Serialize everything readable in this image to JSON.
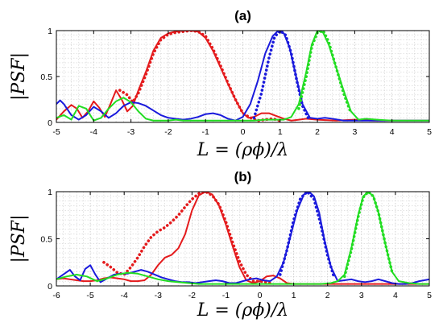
{
  "chart_data": [
    {
      "type": "line",
      "title": "(a)",
      "xlabel": "L = (ρϕ)/λ",
      "ylabel": "|PSF|",
      "xlim": [
        -5,
        5
      ],
      "ylim": [
        0,
        1
      ],
      "xticks": [
        -5,
        -4,
        -3,
        -2,
        -1,
        0,
        1,
        2,
        3,
        4,
        5
      ],
      "yticks": [
        0,
        0.5,
        1
      ],
      "ytick_labels": [
        "0",
        "0.5",
        "1"
      ],
      "grid": "minor dotted",
      "series": [
        {
          "color": "#e41a1c",
          "style": "solid",
          "x": [
            -5,
            -4.8,
            -4.6,
            -4.45,
            -4.3,
            -4.15,
            -4.0,
            -3.85,
            -3.7,
            -3.55,
            -3.4,
            -3.25,
            -3.1,
            -2.95,
            -2.8,
            -2.6,
            -2.4,
            -2.2,
            -2.0,
            -1.8,
            -1.6,
            -1.4,
            -1.2,
            -1.0,
            -0.8,
            -0.6,
            -0.4,
            -0.2,
            0.0,
            0.15,
            0.3,
            0.5,
            0.7,
            0.9,
            1.1,
            1.3,
            1.5,
            1.7,
            2.0,
            2.5,
            3.0,
            3.5,
            4.0,
            4.5,
            5.0
          ],
          "y": [
            0.03,
            0.12,
            0.19,
            0.15,
            0.05,
            0.12,
            0.23,
            0.16,
            0.06,
            0.2,
            0.35,
            0.25,
            0.12,
            0.18,
            0.35,
            0.55,
            0.78,
            0.92,
            0.97,
            0.99,
            1.0,
            1.0,
            0.99,
            0.92,
            0.78,
            0.6,
            0.42,
            0.25,
            0.1,
            0.05,
            0.06,
            0.1,
            0.1,
            0.07,
            0.04,
            0.02,
            0.03,
            0.04,
            0.03,
            0.02,
            0.03,
            0.02,
            0.02,
            0.02,
            0.02
          ]
        },
        {
          "color": "#e41a1c",
          "style": "dotted",
          "x": [
            -3.3,
            -3.1,
            -2.95,
            -2.8,
            -2.6,
            -2.4,
            -2.2,
            -2.0,
            -1.8,
            -1.6,
            -1.4,
            -1.2,
            -1.0,
            -0.8,
            -0.6,
            -0.4,
            -0.2,
            0.0,
            0.2,
            0.4,
            0.6,
            0.8,
            1.0
          ],
          "y": [
            0.35,
            0.3,
            0.22,
            0.32,
            0.52,
            0.75,
            0.9,
            0.96,
            0.98,
            0.99,
            1.0,
            0.99,
            0.94,
            0.8,
            0.62,
            0.43,
            0.25,
            0.1,
            0.05,
            0.02,
            0.03,
            0.04,
            0.02
          ]
        },
        {
          "color": "#1a1adc",
          "style": "solid",
          "x": [
            -5,
            -4.9,
            -4.8,
            -4.6,
            -4.4,
            -4.2,
            -4.0,
            -3.8,
            -3.6,
            -3.4,
            -3.2,
            -3.0,
            -2.8,
            -2.6,
            -2.4,
            -2.2,
            -2.0,
            -1.8,
            -1.6,
            -1.4,
            -1.2,
            -1.0,
            -0.8,
            -0.6,
            -0.4,
            -0.2,
            0.0,
            0.2,
            0.4,
            0.6,
            0.8,
            0.95,
            1.1,
            1.25,
            1.4,
            1.6,
            1.8,
            2.0,
            2.2,
            2.4,
            2.7,
            3.0,
            3.5,
            4.0,
            4.5,
            5.0
          ],
          "y": [
            0.2,
            0.24,
            0.2,
            0.08,
            0.03,
            0.08,
            0.17,
            0.12,
            0.05,
            0.1,
            0.18,
            0.22,
            0.21,
            0.18,
            0.13,
            0.08,
            0.05,
            0.04,
            0.03,
            0.04,
            0.06,
            0.09,
            0.1,
            0.08,
            0.04,
            0.02,
            0.06,
            0.2,
            0.45,
            0.75,
            0.94,
            1.0,
            0.97,
            0.82,
            0.55,
            0.2,
            0.05,
            0.04,
            0.05,
            0.04,
            0.02,
            0.02,
            0.02,
            0.02,
            0.02,
            0.02
          ]
        },
        {
          "color": "#1a1adc",
          "style": "dotted",
          "x": [
            0.3,
            0.5,
            0.7,
            0.85,
            1.0,
            1.15,
            1.3,
            1.45,
            1.6,
            1.75
          ],
          "y": [
            0.05,
            0.32,
            0.7,
            0.93,
            1.0,
            0.95,
            0.75,
            0.45,
            0.18,
            0.05
          ]
        },
        {
          "color": "#22dd22",
          "style": "solid",
          "x": [
            -5,
            -4.8,
            -4.6,
            -4.4,
            -4.2,
            -4.0,
            -3.8,
            -3.6,
            -3.4,
            -3.2,
            -3.0,
            -2.8,
            -2.6,
            -2.4,
            -2.2,
            -2.0,
            -1.8,
            -1.6,
            -1.4,
            -1.2,
            -1.0,
            -0.8,
            -0.6,
            -0.4,
            -0.2,
            0.0,
            0.3,
            0.6,
            0.9,
            1.1,
            1.3,
            1.5,
            1.7,
            1.85,
            2.0,
            2.15,
            2.3,
            2.5,
            2.7,
            2.9,
            3.1,
            3.3,
            3.6,
            4.0,
            4.5,
            5.0
          ],
          "y": [
            0.05,
            0.08,
            0.03,
            0.18,
            0.15,
            0.02,
            0.05,
            0.15,
            0.23,
            0.27,
            0.22,
            0.12,
            0.04,
            0.02,
            0.02,
            0.02,
            0.03,
            0.02,
            0.02,
            0.02,
            0.02,
            0.02,
            0.02,
            0.02,
            0.02,
            0.02,
            0.02,
            0.03,
            0.03,
            0.03,
            0.06,
            0.2,
            0.55,
            0.85,
            1.0,
            0.98,
            0.85,
            0.6,
            0.35,
            0.12,
            0.03,
            0.04,
            0.03,
            0.02,
            0.02,
            0.02
          ]
        },
        {
          "color": "#22dd22",
          "style": "dotted",
          "x": [
            1.5,
            1.7,
            1.85,
            2.0,
            2.15,
            2.3,
            2.5,
            2.7,
            2.9
          ],
          "y": [
            0.15,
            0.5,
            0.83,
            0.98,
            1.0,
            0.88,
            0.6,
            0.32,
            0.1
          ]
        }
      ]
    },
    {
      "type": "line",
      "title": "(b)",
      "xlabel": "L = (ρϕ)/λ",
      "ylabel": "|PSF|",
      "xlim": [
        -6,
        5
      ],
      "ylim": [
        0,
        1
      ],
      "xticks": [
        -6,
        -5,
        -4,
        -3,
        -2,
        -1,
        0,
        1,
        2,
        3,
        4,
        5
      ],
      "yticks": [
        0,
        0.5,
        1
      ],
      "ytick_labels": [
        "0",
        "0.5",
        "1"
      ],
      "grid": "minor dotted",
      "series": [
        {
          "color": "#e41a1c",
          "style": "solid",
          "x": [
            -6,
            -5.8,
            -5.6,
            -5.4,
            -5.2,
            -5.0,
            -4.8,
            -4.6,
            -4.4,
            -4.2,
            -4.0,
            -3.8,
            -3.6,
            -3.4,
            -3.2,
            -3.0,
            -2.8,
            -2.6,
            -2.4,
            -2.2,
            -2.0,
            -1.8,
            -1.6,
            -1.4,
            -1.2,
            -1.0,
            -0.8,
            -0.6,
            -0.4,
            -0.2,
            0.0,
            0.2,
            0.4,
            0.6,
            0.8,
            1.0,
            1.5,
            2.0,
            2.5,
            3.0,
            3.5,
            4.0,
            4.5,
            5.0
          ],
          "y": [
            0.07,
            0.08,
            0.07,
            0.06,
            0.05,
            0.05,
            0.06,
            0.08,
            0.09,
            0.08,
            0.07,
            0.05,
            0.05,
            0.06,
            0.12,
            0.22,
            0.3,
            0.33,
            0.4,
            0.55,
            0.8,
            0.96,
            1.0,
            0.97,
            0.85,
            0.65,
            0.42,
            0.2,
            0.06,
            0.03,
            0.05,
            0.1,
            0.11,
            0.08,
            0.03,
            0.02,
            0.02,
            0.02,
            0.02,
            0.02,
            0.02,
            0.02,
            0.02,
            0.02
          ]
        },
        {
          "color": "#e41a1c",
          "style": "dotted",
          "x": [
            -4.6,
            -4.4,
            -4.2,
            -4.0,
            -3.8,
            -3.6,
            -3.4,
            -3.2,
            -3.0,
            -2.8,
            -2.6,
            -2.4,
            -2.2,
            -2.0,
            -1.8,
            -1.6,
            -1.4,
            -1.2,
            -1.0,
            -0.8,
            -0.6,
            -0.4,
            -0.2,
            0.0,
            0.2,
            0.4
          ],
          "y": [
            0.25,
            0.2,
            0.14,
            0.12,
            0.2,
            0.3,
            0.42,
            0.52,
            0.58,
            0.62,
            0.68,
            0.75,
            0.84,
            0.92,
            0.98,
            1.0,
            0.96,
            0.86,
            0.68,
            0.46,
            0.26,
            0.12,
            0.05,
            0.05,
            0.04,
            0.02
          ]
        },
        {
          "color": "#1a1adc",
          "style": "solid",
          "x": [
            -6,
            -5.8,
            -5.6,
            -5.45,
            -5.3,
            -5.15,
            -5.0,
            -4.85,
            -4.7,
            -4.5,
            -4.3,
            -4.1,
            -3.9,
            -3.7,
            -3.5,
            -3.3,
            -3.1,
            -2.9,
            -2.7,
            -2.5,
            -2.3,
            -2.1,
            -1.9,
            -1.7,
            -1.5,
            -1.3,
            -1.1,
            -0.9,
            -0.7,
            -0.5,
            -0.3,
            -0.1,
            0.1,
            0.3,
            0.5,
            0.7,
            0.9,
            1.1,
            1.3,
            1.45,
            1.6,
            1.75,
            1.9,
            2.1,
            2.3,
            2.5,
            2.7,
            2.9,
            3.1,
            3.3,
            3.5,
            3.7,
            3.9,
            4.1,
            4.3,
            4.5,
            4.7,
            5.0
          ],
          "y": [
            0.07,
            0.12,
            0.17,
            0.1,
            0.06,
            0.18,
            0.22,
            0.12,
            0.04,
            0.08,
            0.12,
            0.13,
            0.13,
            0.15,
            0.17,
            0.15,
            0.12,
            0.09,
            0.07,
            0.05,
            0.04,
            0.04,
            0.03,
            0.04,
            0.05,
            0.06,
            0.05,
            0.03,
            0.03,
            0.05,
            0.07,
            0.08,
            0.06,
            0.05,
            0.1,
            0.25,
            0.52,
            0.8,
            0.97,
            1.0,
            0.95,
            0.78,
            0.5,
            0.2,
            0.05,
            0.06,
            0.07,
            0.05,
            0.04,
            0.05,
            0.07,
            0.05,
            0.03,
            0.02,
            0.02,
            0.03,
            0.05,
            0.07
          ]
        },
        {
          "color": "#1a1adc",
          "style": "dotted",
          "x": [
            0.6,
            0.8,
            1.0,
            1.2,
            1.4,
            1.6,
            1.8,
            2.0,
            2.2
          ],
          "y": [
            0.12,
            0.38,
            0.7,
            0.93,
            1.0,
            0.92,
            0.65,
            0.32,
            0.08
          ]
        },
        {
          "color": "#22dd22",
          "style": "solid",
          "x": [
            -6,
            -5.7,
            -5.4,
            -5.1,
            -4.8,
            -4.5,
            -4.2,
            -3.9,
            -3.6,
            -3.3,
            -3.0,
            -2.7,
            -2.4,
            -2.1,
            -1.8,
            -1.5,
            -1.2,
            -0.9,
            -0.6,
            -0.3,
            0.0,
            0.3,
            0.6,
            0.9,
            1.2,
            1.5,
            1.8,
            2.1,
            2.3,
            2.5,
            2.7,
            2.9,
            3.05,
            3.2,
            3.35,
            3.5,
            3.7,
            3.9,
            4.1,
            4.4,
            4.7,
            5.0
          ],
          "y": [
            0.07,
            0.1,
            0.12,
            0.1,
            0.05,
            0.08,
            0.12,
            0.14,
            0.13,
            0.1,
            0.07,
            0.05,
            0.04,
            0.03,
            0.02,
            0.02,
            0.02,
            0.02,
            0.02,
            0.02,
            0.02,
            0.02,
            0.02,
            0.02,
            0.02,
            0.02,
            0.02,
            0.03,
            0.05,
            0.12,
            0.4,
            0.75,
            0.95,
            1.0,
            0.95,
            0.78,
            0.45,
            0.15,
            0.05,
            0.03,
            0.02,
            0.02
          ]
        },
        {
          "color": "#22dd22",
          "style": "dotted",
          "x": [
            2.5,
            2.7,
            2.9,
            3.05,
            3.2,
            3.35,
            3.5,
            3.7,
            3.9
          ],
          "y": [
            0.1,
            0.38,
            0.73,
            0.94,
            1.0,
            0.95,
            0.78,
            0.45,
            0.15
          ]
        }
      ]
    }
  ]
}
